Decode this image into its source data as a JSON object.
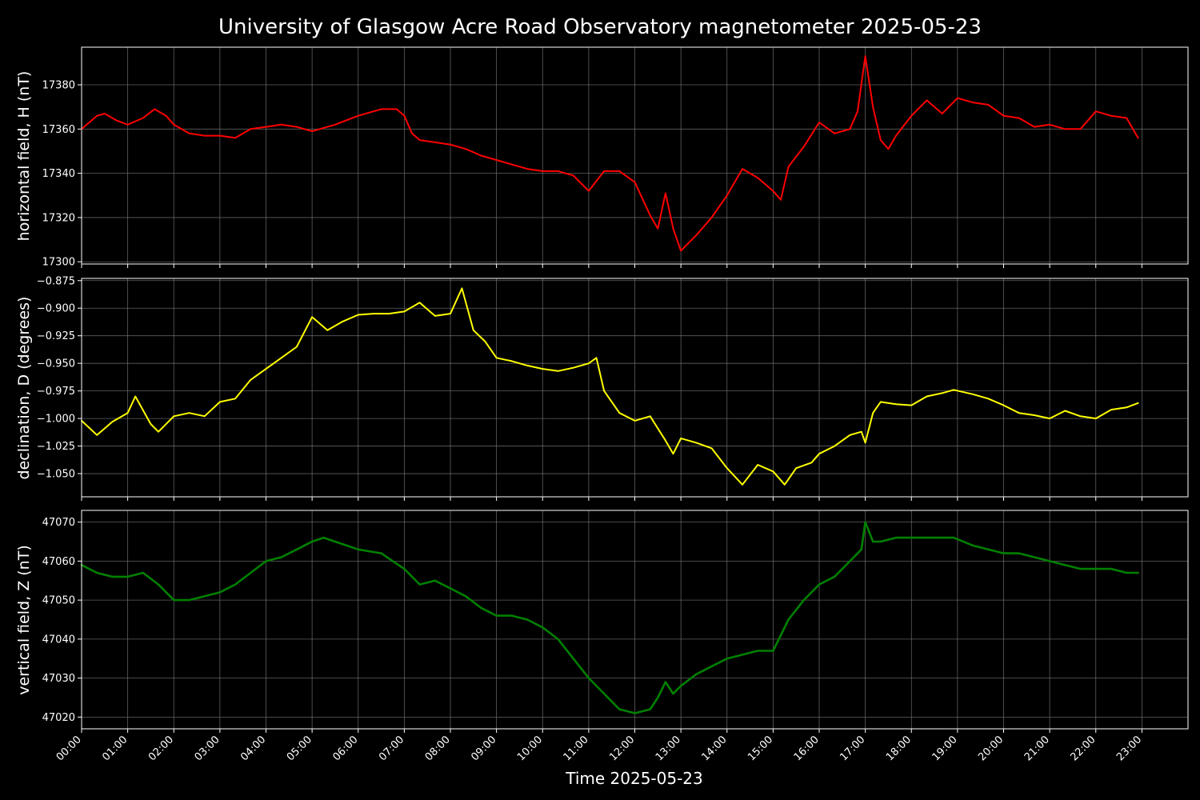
{
  "title": "University of Glasgow Acre Road Observatory magnetometer 2025-05-23",
  "xlabel": "Time 2025-05-23",
  "grid": true,
  "x_ticks": [
    "00:00",
    "01:00",
    "02:00",
    "03:00",
    "04:00",
    "05:00",
    "06:00",
    "07:00",
    "08:00",
    "09:00",
    "10:00",
    "11:00",
    "12:00",
    "13:00",
    "14:00",
    "15:00",
    "16:00",
    "17:00",
    "18:00",
    "19:00",
    "20:00",
    "21:00",
    "22:00",
    "23:00"
  ],
  "chart_data": [
    {
      "type": "line",
      "ylabel": "horizontal field, H (nT)",
      "color": "#ff0000",
      "xlim": [
        "00:00",
        "24:00"
      ],
      "ylim": [
        17299,
        17397
      ],
      "yticks": [
        17300,
        17320,
        17340,
        17360,
        17380
      ],
      "x": [
        "00:00",
        "00:20",
        "00:30",
        "00:45",
        "01:00",
        "01:20",
        "01:35",
        "01:50",
        "02:00",
        "02:20",
        "02:40",
        "03:00",
        "03:20",
        "03:40",
        "04:00",
        "04:20",
        "04:40",
        "05:00",
        "05:30",
        "06:00",
        "06:30",
        "06:50",
        "07:00",
        "07:10",
        "07:20",
        "07:40",
        "08:00",
        "08:20",
        "08:40",
        "09:00",
        "09:20",
        "09:40",
        "10:00",
        "10:20",
        "10:40",
        "11:00",
        "11:20",
        "11:40",
        "12:00",
        "12:20",
        "12:30",
        "12:40",
        "12:50",
        "13:00",
        "13:20",
        "13:40",
        "14:00",
        "14:20",
        "14:40",
        "15:00",
        "15:10",
        "15:20",
        "15:40",
        "16:00",
        "16:20",
        "16:40",
        "16:50",
        "17:00",
        "17:10",
        "17:20",
        "17:30",
        "17:40",
        "18:00",
        "18:20",
        "18:40",
        "19:00",
        "19:20",
        "19:40",
        "20:00",
        "20:20",
        "20:40",
        "21:00",
        "21:20",
        "21:40",
        "22:00",
        "22:20",
        "22:40",
        "22:55"
      ],
      "values": [
        17360,
        17366,
        17367,
        17364,
        17362,
        17365,
        17369,
        17366,
        17362,
        17358,
        17357,
        17357,
        17356,
        17360,
        17361,
        17362,
        17361,
        17359,
        17362,
        17366,
        17369,
        17369,
        17366,
        17358,
        17355,
        17354,
        17353,
        17351,
        17348,
        17346,
        17344,
        17342,
        17341,
        17341,
        17339,
        17332,
        17341,
        17341,
        17336,
        17321,
        17315,
        17331,
        17315,
        17305,
        17312,
        17320,
        17330,
        17342,
        17338,
        17332,
        17328,
        17343,
        17352,
        17363,
        17358,
        17360,
        17368,
        17393,
        17370,
        17355,
        17351,
        17357,
        17366,
        17373,
        17367,
        17374,
        17372,
        17371,
        17366,
        17365,
        17361,
        17362,
        17360,
        17360,
        17368,
        17366,
        17365,
        17356
      ]
    },
    {
      "type": "line",
      "ylabel": "declination, D (degrees)",
      "color": "#ffff00",
      "xlim": [
        "00:00",
        "24:00"
      ],
      "ylim": [
        -1.071,
        -0.873
      ],
      "yticks": [
        -0.875,
        -0.9,
        -0.925,
        -0.95,
        -0.975,
        -1.0,
        -1.025,
        -1.05
      ],
      "ytick_labels": [
        "−0.875",
        "−0.900",
        "−0.925",
        "−0.950",
        "−0.975",
        "−1.000",
        "−1.025",
        "−1.050"
      ],
      "x": [
        "00:00",
        "00:20",
        "00:40",
        "01:00",
        "01:10",
        "01:30",
        "01:40",
        "02:00",
        "02:20",
        "02:40",
        "03:00",
        "03:20",
        "03:40",
        "04:00",
        "04:20",
        "04:40",
        "05:00",
        "05:20",
        "05:40",
        "06:00",
        "06:20",
        "06:40",
        "07:00",
        "07:20",
        "07:40",
        "08:00",
        "08:15",
        "08:30",
        "08:45",
        "09:00",
        "09:20",
        "09:40",
        "10:00",
        "10:20",
        "10:40",
        "11:00",
        "11:10",
        "11:20",
        "11:40",
        "12:00",
        "12:20",
        "12:40",
        "12:50",
        "13:00",
        "13:20",
        "13:40",
        "14:00",
        "14:20",
        "14:40",
        "15:00",
        "15:15",
        "15:30",
        "15:50",
        "16:00",
        "16:20",
        "16:40",
        "16:55",
        "17:00",
        "17:10",
        "17:20",
        "17:40",
        "18:00",
        "18:20",
        "18:40",
        "18:55",
        "19:20",
        "19:40",
        "20:00",
        "20:20",
        "20:40",
        "21:00",
        "21:20",
        "21:40",
        "22:00",
        "22:20",
        "22:40",
        "22:55"
      ],
      "values": [
        -1.002,
        -1.015,
        -1.003,
        -0.995,
        -0.98,
        -1.005,
        -1.012,
        -0.998,
        -0.995,
        -0.998,
        -0.985,
        -0.982,
        -0.965,
        -0.955,
        -0.945,
        -0.935,
        -0.908,
        -0.92,
        -0.912,
        -0.906,
        -0.905,
        -0.905,
        -0.903,
        -0.895,
        -0.907,
        -0.905,
        -0.882,
        -0.92,
        -0.93,
        -0.945,
        -0.948,
        -0.952,
        -0.955,
        -0.957,
        -0.954,
        -0.95,
        -0.945,
        -0.975,
        -0.995,
        -1.002,
        -0.998,
        -1.02,
        -1.032,
        -1.018,
        -1.022,
        -1.027,
        -1.045,
        -1.06,
        -1.042,
        -1.048,
        -1.06,
        -1.045,
        -1.04,
        -1.032,
        -1.025,
        -1.015,
        -1.012,
        -1.022,
        -0.995,
        -0.985,
        -0.987,
        -0.988,
        -0.98,
        -0.977,
        -0.974,
        -0.978,
        -0.982,
        -0.988,
        -0.995,
        -0.997,
        -1.0,
        -0.993,
        -0.998,
        -1.0,
        -0.992,
        -0.99,
        -0.986
      ]
    },
    {
      "type": "line",
      "ylabel": "vertical field, Z (nT)",
      "color": "#008000",
      "xlim": [
        "00:00",
        "24:00"
      ],
      "ylim": [
        47017,
        47073
      ],
      "yticks": [
        47020,
        47030,
        47040,
        47050,
        47060,
        47070
      ],
      "x": [
        "00:00",
        "00:20",
        "00:40",
        "01:00",
        "01:20",
        "01:40",
        "02:00",
        "02:20",
        "02:40",
        "03:00",
        "03:20",
        "03:40",
        "04:00",
        "04:20",
        "04:40",
        "05:00",
        "05:15",
        "05:30",
        "05:45",
        "06:00",
        "06:30",
        "06:45",
        "07:00",
        "07:20",
        "07:40",
        "08:00",
        "08:20",
        "08:40",
        "09:00",
        "09:20",
        "09:40",
        "10:00",
        "10:20",
        "10:40",
        "11:00",
        "11:20",
        "11:40",
        "12:00",
        "12:20",
        "12:30",
        "12:40",
        "12:50",
        "13:00",
        "13:20",
        "13:40",
        "14:00",
        "14:20",
        "14:40",
        "15:00",
        "15:20",
        "15:40",
        "16:00",
        "16:20",
        "16:40",
        "16:55",
        "17:00",
        "17:10",
        "17:20",
        "17:40",
        "18:00",
        "18:20",
        "18:40",
        "18:55",
        "19:20",
        "19:40",
        "20:00",
        "20:20",
        "20:40",
        "21:00",
        "21:20",
        "21:40",
        "22:00",
        "22:20",
        "22:40",
        "22:55"
      ],
      "values": [
        47059,
        47057,
        47056,
        47056,
        47057,
        47054,
        47050,
        47050,
        47051,
        47052,
        47054,
        47057,
        47060,
        47061,
        47063,
        47065,
        47066,
        47065,
        47064,
        47063,
        47062,
        47060,
        47058,
        47054,
        47055,
        47053,
        47051,
        47048,
        47046,
        47046,
        47045,
        47043,
        47040,
        47035,
        47030,
        47026,
        47022,
        47021,
        47022,
        47025,
        47029,
        47026,
        47028,
        47031,
        47033,
        47035,
        47036,
        47037,
        47037,
        47045,
        47050,
        47054,
        47056,
        47060,
        47063,
        47070,
        47065,
        47065,
        47066,
        47066,
        47066,
        47066,
        47066,
        47064,
        47063,
        47062,
        47062,
        47061,
        47060,
        47059,
        47058,
        47058,
        47058,
        47057,
        47057
      ]
    }
  ]
}
